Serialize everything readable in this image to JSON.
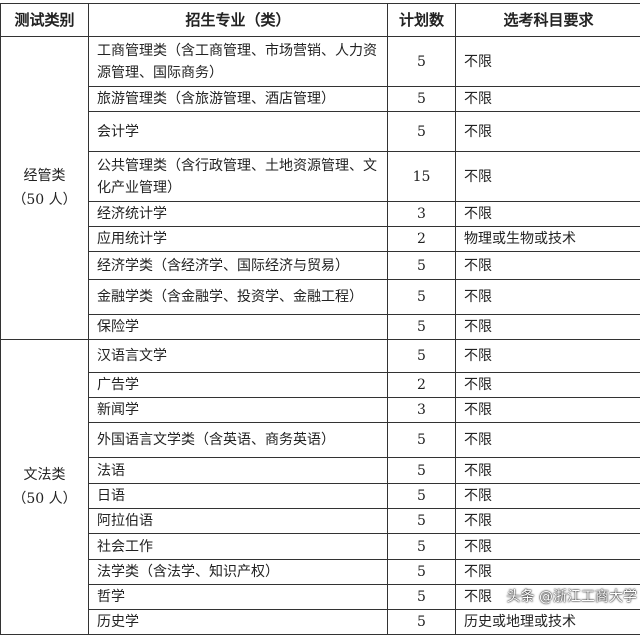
{
  "headers": [
    "测试类别",
    "招生专业（类）",
    "计划数",
    "选考科目要求"
  ],
  "groups": [
    {
      "category": "经管类",
      "count": "（50 人）",
      "rows": [
        {
          "major": "工商管理类（含工商管理、市场营销、人力资源管理、国际商务）",
          "plan": "5",
          "req": "不限"
        },
        {
          "major": "旅游管理类（含旅游管理、酒店管理）",
          "plan": "5",
          "req": "不限"
        },
        {
          "major": "会计学",
          "plan": "5",
          "req": "不限"
        },
        {
          "major": "公共管理类（含行政管理、土地资源管理、文化产业管理）",
          "plan": "15",
          "req": "不限"
        },
        {
          "major": "经济统计学",
          "plan": "3",
          "req": "不限"
        },
        {
          "major": "应用统计学",
          "plan": "2",
          "req": "物理或生物或技术"
        },
        {
          "major": "经济学类（含经济学、国际经济与贸易）",
          "plan": "5",
          "req": "不限"
        },
        {
          "major": "金融学类（含金融学、投资学、金融工程）",
          "plan": "5",
          "req": "不限"
        },
        {
          "major": "保险学",
          "plan": "5",
          "req": "不限"
        }
      ]
    },
    {
      "category": "文法类",
      "count": "（50 人）",
      "rows": [
        {
          "major": "汉语言文学",
          "plan": "5",
          "req": "不限"
        },
        {
          "major": "广告学",
          "plan": "2",
          "req": "不限"
        },
        {
          "major": "新闻学",
          "plan": "3",
          "req": "不限"
        },
        {
          "major": "外国语言文学类（含英语、商务英语）",
          "plan": "5",
          "req": "不限"
        },
        {
          "major": "法语",
          "plan": "5",
          "req": "不限"
        },
        {
          "major": "日语",
          "plan": "5",
          "req": "不限"
        },
        {
          "major": "阿拉伯语",
          "plan": "5",
          "req": "不限"
        },
        {
          "major": "社会工作",
          "plan": "5",
          "req": "不限"
        },
        {
          "major": "法学类（含法学、知识产权）",
          "plan": "5",
          "req": "不限"
        },
        {
          "major": "哲学",
          "plan": "5",
          "req": "不限"
        },
        {
          "major": "历史学",
          "plan": "5",
          "req": "历史或地理或技术"
        }
      ]
    }
  ],
  "watermark": "头条 @浙江工商大学"
}
